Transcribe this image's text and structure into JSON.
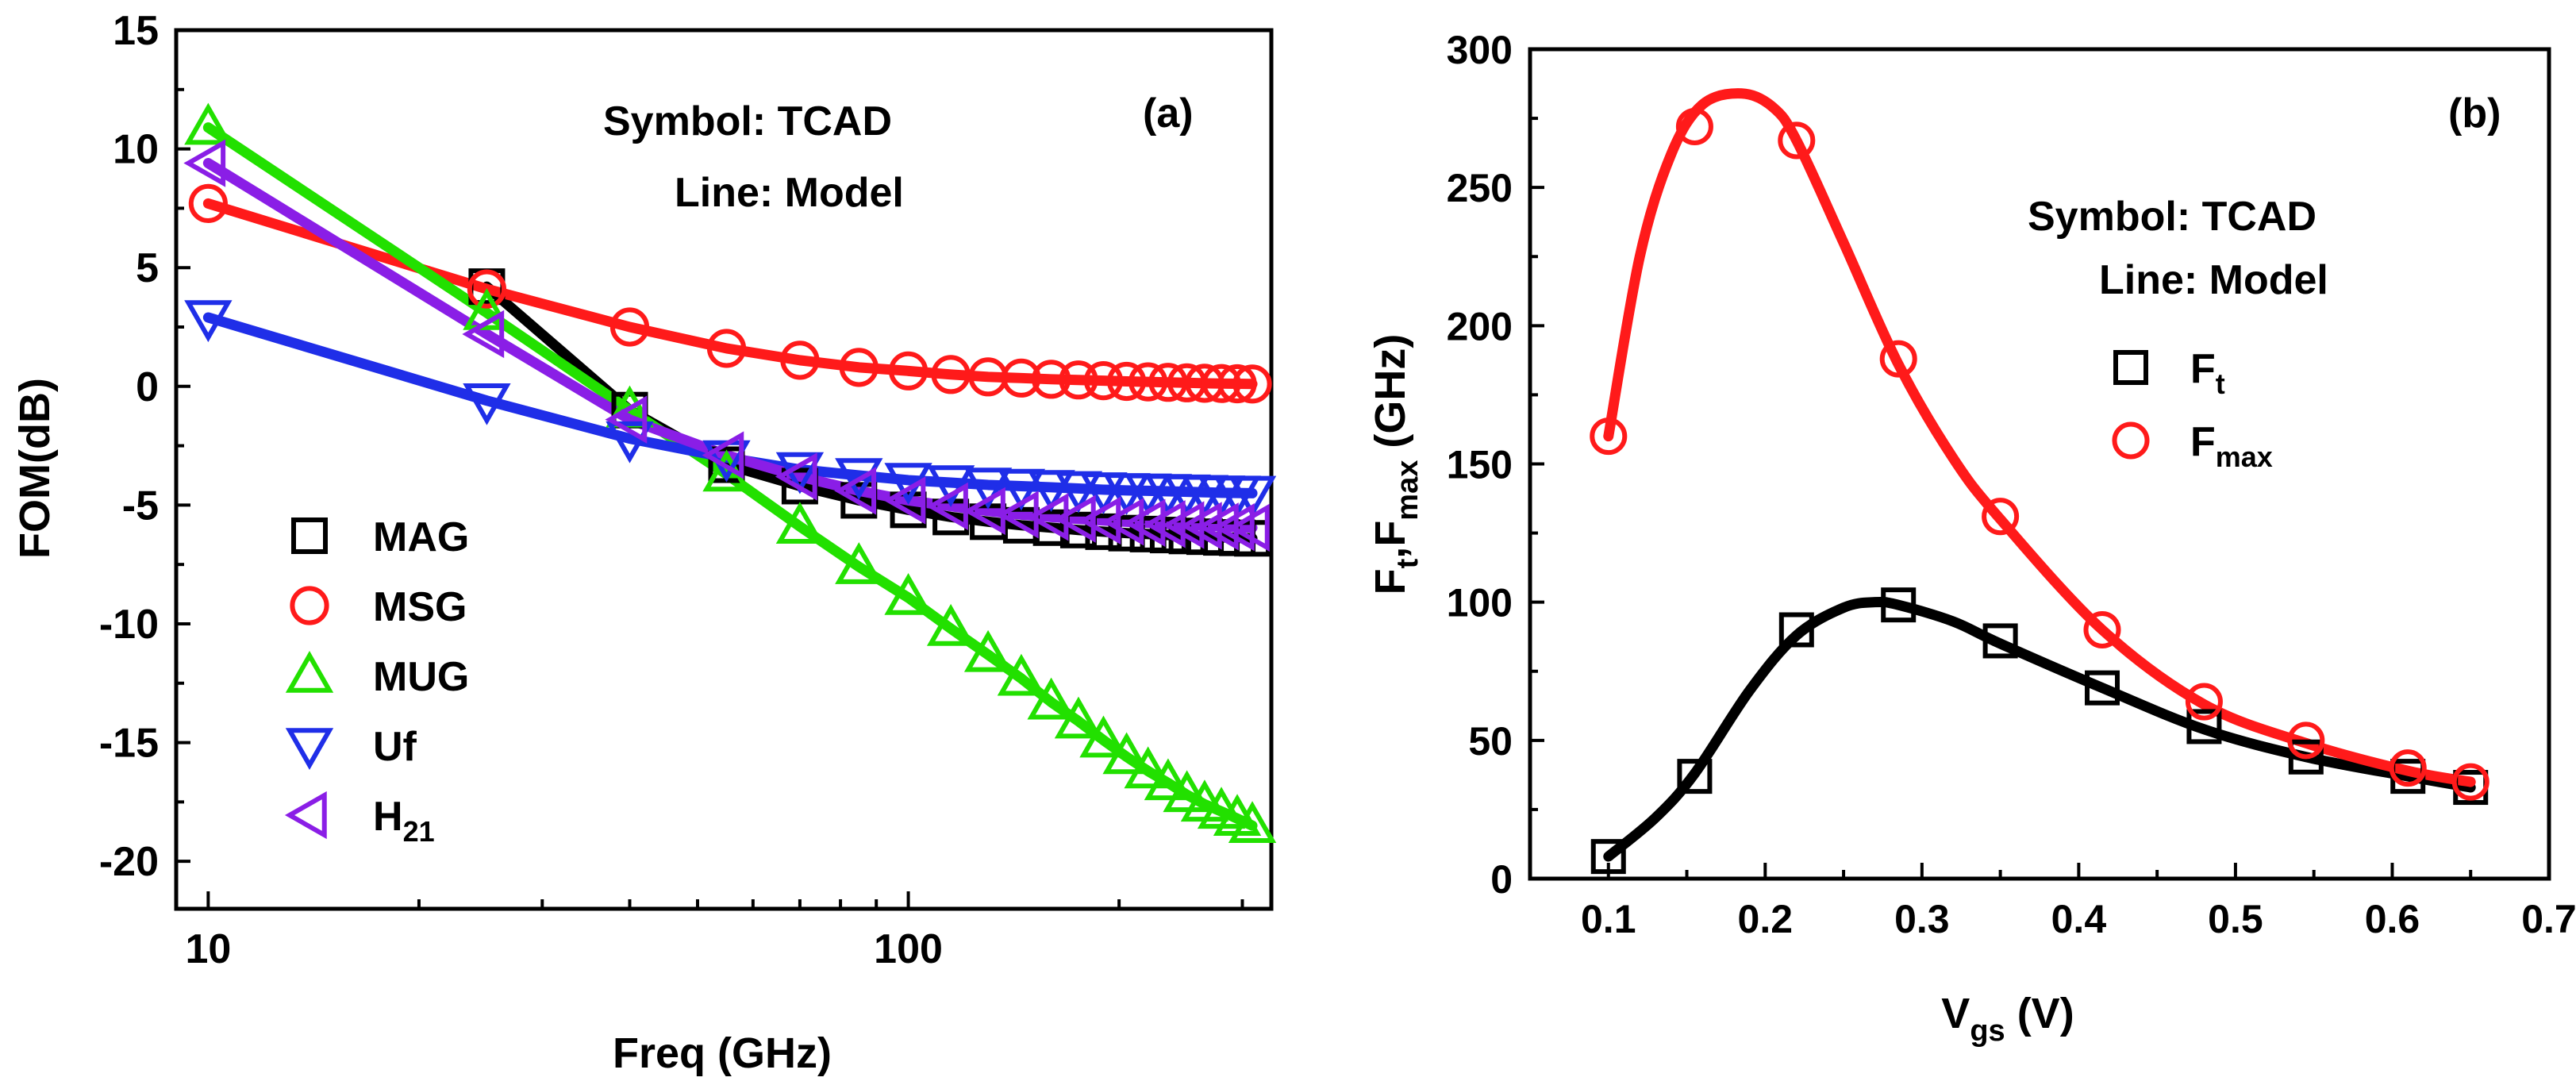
{
  "chart_data": [
    {
      "panel": "a",
      "type": "line",
      "panel_label": "(a)",
      "annotation": {
        "symbol_line": "Symbol: TCAD",
        "model_line": "Line:  Model"
      },
      "xlabel": "Freq (GHz)",
      "ylabel": "FOM(dB)",
      "xscale": "log",
      "xlim": [
        9,
        330
      ],
      "ylim": [
        -22,
        15
      ],
      "xticks": [
        {
          "v": 10,
          "label": "10"
        },
        {
          "v": 100,
          "label": "100"
        }
      ],
      "yticks": [
        {
          "v": 15,
          "label": "15"
        },
        {
          "v": 10,
          "label": "10"
        },
        {
          "v": 5,
          "label": "5"
        },
        {
          "v": 0,
          "label": "0"
        },
        {
          "v": -5,
          "label": "-5"
        },
        {
          "v": -10,
          "label": "-10"
        },
        {
          "v": -15,
          "label": "-15"
        },
        {
          "v": -20,
          "label": "-20"
        }
      ],
      "legend_position": "lower-left",
      "series": [
        {
          "name": "MAG",
          "sub": "",
          "color": "#000000",
          "marker": "square",
          "x": [
            25,
            40,
            55,
            70,
            85,
            100,
            115,
            130,
            145,
            160,
            175,
            190,
            205,
            220,
            235,
            250,
            265,
            280,
            295,
            310
          ],
          "y": [
            4.2,
            -1.0,
            -3.3,
            -4.2,
            -4.8,
            -5.2,
            -5.5,
            -5.7,
            -5.85,
            -5.95,
            -6.05,
            -6.12,
            -6.18,
            -6.22,
            -6.26,
            -6.3,
            -6.33,
            -6.36,
            -6.38,
            -6.4
          ]
        },
        {
          "name": "MSG",
          "sub": "",
          "color": "#ff1a1a",
          "marker": "circle",
          "x": [
            10,
            25,
            40,
            55,
            70,
            85,
            100,
            115,
            130,
            145,
            160,
            175,
            190,
            205,
            220,
            235,
            250,
            265,
            280,
            295,
            310
          ],
          "y": [
            7.7,
            4.1,
            2.5,
            1.6,
            1.1,
            0.8,
            0.65,
            0.5,
            0.4,
            0.35,
            0.3,
            0.27,
            0.24,
            0.21,
            0.19,
            0.17,
            0.15,
            0.13,
            0.12,
            0.11,
            0.1
          ]
        },
        {
          "name": "MUG",
          "sub": "",
          "color": "#22e000",
          "marker": "triangle-up",
          "x": [
            10,
            25,
            40,
            55,
            70,
            85,
            100,
            115,
            130,
            145,
            160,
            175,
            190,
            205,
            220,
            235,
            250,
            265,
            280,
            295,
            310
          ],
          "y": [
            10.9,
            3.1,
            -1.0,
            -3.7,
            -5.9,
            -7.6,
            -8.9,
            -10.2,
            -11.3,
            -12.3,
            -13.3,
            -14.1,
            -14.9,
            -15.6,
            -16.2,
            -16.7,
            -17.2,
            -17.6,
            -17.9,
            -18.2,
            -18.5
          ]
        },
        {
          "name": "Uf",
          "sub": "",
          "color": "#1f2ee8",
          "marker": "triangle-down",
          "x": [
            10,
            25,
            40,
            55,
            70,
            85,
            100,
            115,
            130,
            145,
            160,
            175,
            190,
            205,
            220,
            235,
            250,
            265,
            280,
            295,
            310
          ],
          "y": [
            2.9,
            -0.6,
            -2.2,
            -3.0,
            -3.5,
            -3.75,
            -3.95,
            -4.05,
            -4.15,
            -4.2,
            -4.25,
            -4.3,
            -4.35,
            -4.38,
            -4.4,
            -4.42,
            -4.44,
            -4.46,
            -4.48,
            -4.49,
            -4.5
          ]
        },
        {
          "name": "H",
          "sub": "21",
          "color": "#8a1ee6",
          "marker": "triangle-left",
          "x": [
            10,
            25,
            40,
            55,
            70,
            85,
            100,
            115,
            130,
            145,
            160,
            175,
            190,
            205,
            220,
            235,
            250,
            265,
            280,
            295,
            310
          ],
          "y": [
            9.4,
            2.2,
            -1.4,
            -2.9,
            -3.8,
            -4.4,
            -4.8,
            -5.05,
            -5.25,
            -5.4,
            -5.5,
            -5.58,
            -5.65,
            -5.7,
            -5.75,
            -5.8,
            -5.84,
            -5.87,
            -5.9,
            -5.93,
            -5.95
          ]
        }
      ]
    },
    {
      "panel": "b",
      "type": "line",
      "panel_label": "(b)",
      "annotation": {
        "symbol_line": "Symbol: TCAD",
        "model_line": "Line:  Model"
      },
      "xlabel": "V",
      "xlabel_sub": "gs",
      "xlabel_suffix": " (V)",
      "ylabel": "F",
      "ylabel_parts": [
        {
          "t": "F",
          "s": "t"
        },
        {
          "t": ",F",
          "s": "max"
        }
      ],
      "ylabel_suffix": " (GHz)",
      "xlim": [
        0.05,
        0.7
      ],
      "ylim": [
        0,
        300
      ],
      "xticks": [
        {
          "v": 0.1,
          "label": "0.1"
        },
        {
          "v": 0.2,
          "label": "0.2"
        },
        {
          "v": 0.3,
          "label": "0.3"
        },
        {
          "v": 0.4,
          "label": "0.4"
        },
        {
          "v": 0.5,
          "label": "0.5"
        },
        {
          "v": 0.6,
          "label": "0.6"
        },
        {
          "v": 0.7,
          "label": "0.7"
        }
      ],
      "yticks": [
        {
          "v": 0,
          "label": "0"
        },
        {
          "v": 50,
          "label": "50"
        },
        {
          "v": 100,
          "label": "100"
        },
        {
          "v": 150,
          "label": "150"
        },
        {
          "v": 200,
          "label": "200"
        },
        {
          "v": 250,
          "label": "250"
        },
        {
          "v": 300,
          "label": "300"
        }
      ],
      "legend_position": "top-right",
      "series": [
        {
          "name": "F",
          "sub": "t",
          "color": "#000000",
          "marker": "square",
          "x": [
            0.1,
            0.155,
            0.22,
            0.285,
            0.35,
            0.415,
            0.48,
            0.545,
            0.61,
            0.65
          ],
          "y": [
            8,
            37,
            90,
            99,
            86,
            69,
            55,
            44,
            37,
            33
          ],
          "model_x": [
            0.1,
            0.13,
            0.155,
            0.19,
            0.22,
            0.25,
            0.27,
            0.285,
            0.32,
            0.35,
            0.415,
            0.48,
            0.545,
            0.61,
            0.65
          ],
          "model_y": [
            8,
            22,
            38,
            68,
            88,
            98,
            100,
            99,
            93,
            85,
            69,
            54,
            44,
            37,
            33
          ]
        },
        {
          "name": "F",
          "sub": "max",
          "color": "#ff1a1a",
          "marker": "circle",
          "x": [
            0.1,
            0.155,
            0.22,
            0.285,
            0.35,
            0.415,
            0.48,
            0.545,
            0.61,
            0.65
          ],
          "y": [
            160,
            272,
            267,
            188,
            131,
            90,
            64,
            50,
            40,
            35
          ],
          "model_x": [
            0.1,
            0.12,
            0.14,
            0.16,
            0.185,
            0.205,
            0.22,
            0.25,
            0.285,
            0.32,
            0.35,
            0.415,
            0.48,
            0.545,
            0.61,
            0.65
          ],
          "model_y": [
            160,
            225,
            262,
            280,
            284,
            279,
            267,
            230,
            186,
            152,
            130,
            90,
            63,
            49,
            39,
            35
          ]
        }
      ]
    }
  ]
}
